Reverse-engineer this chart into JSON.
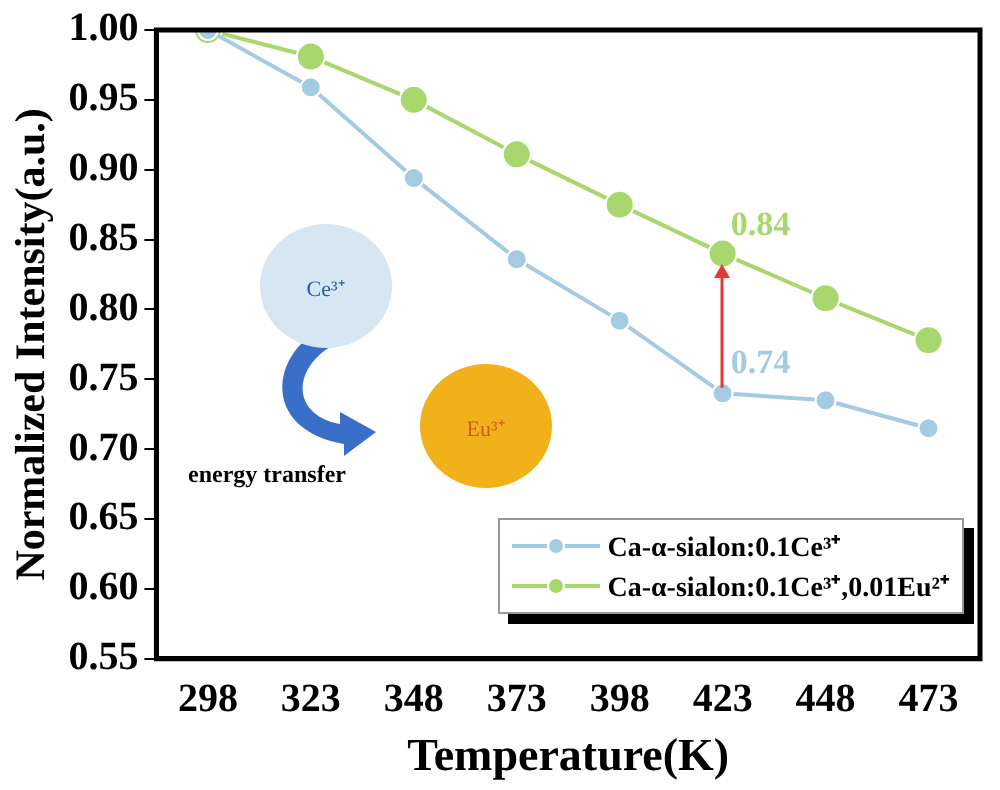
{
  "chart_data": {
    "type": "line",
    "xlabel": "Temperature(K)",
    "ylabel": "Normalized Intensity(a.u.)",
    "categories": [
      "298",
      "323",
      "348",
      "373",
      "398",
      "423",
      "448",
      "473"
    ],
    "ylim": [
      0.55,
      1.0
    ],
    "yticks": [
      0.55,
      {
        "value": 0.6,
        "label": "0.60"
      },
      0.65,
      {
        "value": 0.7,
        "label": "0.70"
      },
      0.75,
      {
        "value": 0.8,
        "label": "0.80"
      },
      0.85,
      {
        "value": 0.9,
        "label": "0.90"
      },
      0.95,
      {
        "value": 1.0,
        "label": "1.00"
      }
    ],
    "grid": false,
    "legend": "bottom right",
    "marker": "circle",
    "line_style": "solid",
    "series": [
      {
        "name": "Ca-α-sialon:0.1Ce³⁺",
        "color": "#a3cce3",
        "values": [
          1.0,
          0.959,
          0.894,
          0.836,
          0.792,
          0.74,
          0.735,
          0.715
        ],
        "value_labels": [
          null,
          null,
          null,
          null,
          null,
          "0.74",
          null,
          null
        ]
      },
      {
        "name": "Ca-α-sialon:0.1Ce³⁺,0.01Eu²⁺",
        "color": "#a8d76e",
        "values": [
          1.0,
          0.981,
          0.95,
          0.911,
          0.875,
          0.84,
          0.808,
          0.778
        ],
        "value_labels": [
          null,
          null,
          null,
          null,
          null,
          "0.84",
          null,
          null
        ]
      }
    ],
    "annotations": [
      "Ce³⁺",
      "energy transfer",
      "Eu³⁺"
    ]
  }
}
